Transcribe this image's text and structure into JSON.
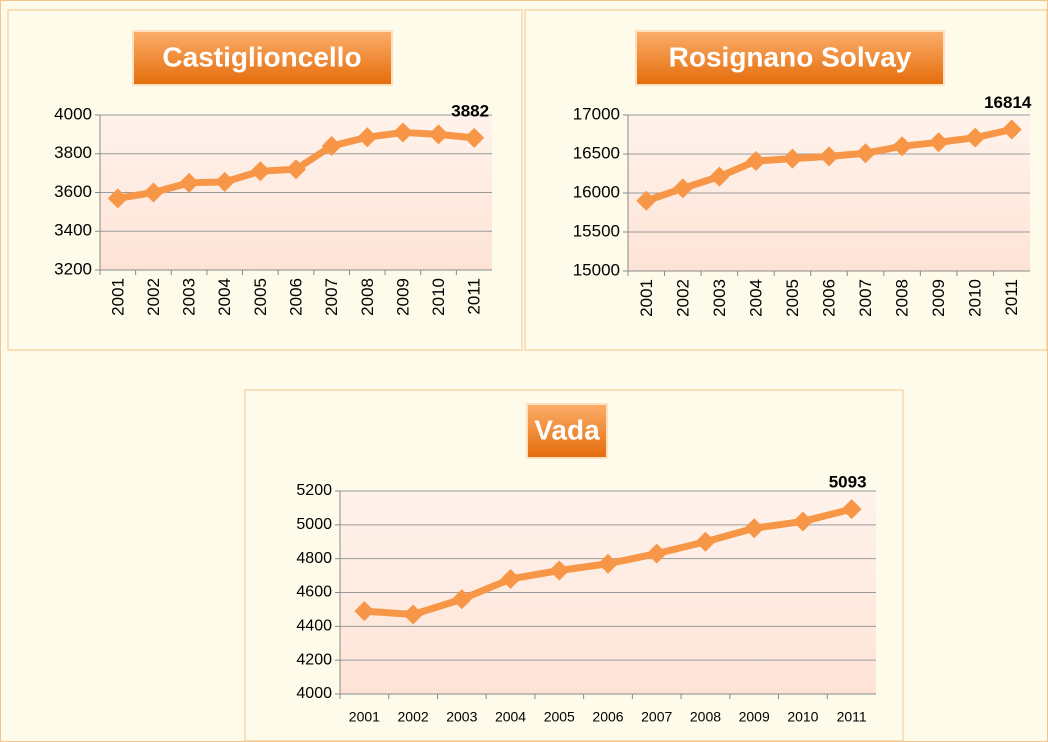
{
  "chart_data": [
    {
      "type": "line",
      "title": "Castiglioncello",
      "categories": [
        "2001",
        "2002",
        "2003",
        "2004",
        "2005",
        "2006",
        "2007",
        "2008",
        "2009",
        "2010",
        "2011"
      ],
      "series": [
        {
          "name": "Castiglioncello",
          "color": "#f79646",
          "values": [
            3570,
            3600,
            3650,
            3655,
            3710,
            3720,
            3840,
            3885,
            3910,
            3900,
            3882
          ],
          "value_labels": [
            null,
            null,
            null,
            null,
            null,
            null,
            null,
            null,
            null,
            null,
            "3882"
          ]
        }
      ],
      "ylim": [
        3200,
        4000
      ],
      "yticks": [
        3200,
        3400,
        3600,
        3800,
        4000
      ],
      "grid": true
    },
    {
      "type": "line",
      "title": "Rosignano Solvay",
      "categories": [
        "2001",
        "2002",
        "2003",
        "2004",
        "2005",
        "2006",
        "2007",
        "2008",
        "2009",
        "2010",
        "2011"
      ],
      "series": [
        {
          "name": "Rosignano Solvay",
          "color": "#f79646",
          "values": [
            15900,
            16060,
            16210,
            16410,
            16440,
            16470,
            16510,
            16600,
            16650,
            16710,
            16814
          ],
          "value_labels": [
            null,
            null,
            null,
            null,
            null,
            null,
            null,
            null,
            null,
            null,
            "16814"
          ]
        }
      ],
      "ylim": [
        15000,
        17000
      ],
      "yticks": [
        15000,
        15500,
        16000,
        16500,
        17000
      ],
      "grid": true
    },
    {
      "type": "line",
      "title": "Vada",
      "categories": [
        "2001",
        "2002",
        "2003",
        "2004",
        "2005",
        "2006",
        "2007",
        "2008",
        "2009",
        "2010",
        "2011"
      ],
      "series": [
        {
          "name": "Vada",
          "color": "#f79646",
          "values": [
            4490,
            4470,
            4560,
            4680,
            4730,
            4770,
            4830,
            4900,
            4980,
            5020,
            5093
          ],
          "value_labels": [
            null,
            null,
            null,
            null,
            null,
            null,
            null,
            null,
            null,
            null,
            "5093"
          ]
        }
      ],
      "ylim": [
        4000,
        5200
      ],
      "yticks": [
        4000,
        4200,
        4400,
        4600,
        4800,
        5000,
        5200
      ],
      "grid": true
    }
  ]
}
